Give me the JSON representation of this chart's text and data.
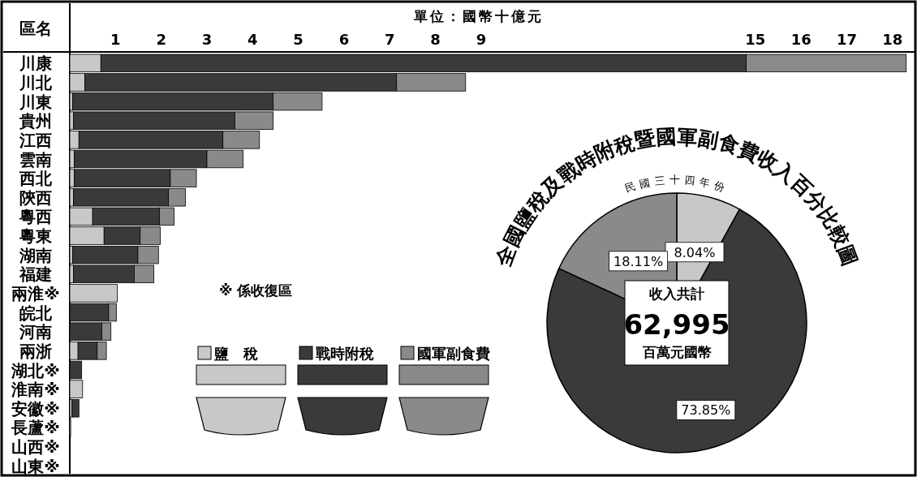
{
  "chart_data": [
    {
      "type": "bar",
      "orientation": "horizontal",
      "stacked": true,
      "xlabel": "單位：國幣十億元",
      "ylabel": "區名",
      "categories": [
        "川康",
        "川北",
        "川東",
        "貴州",
        "江西",
        "雲南",
        "西北",
        "陝西",
        "粵西",
        "粵東",
        "湖南",
        "福建",
        "兩淮※",
        "皖北",
        "河南",
        "兩浙",
        "湖北※",
        "淮南※",
        "安徽※",
        "長蘆※",
        "山西※",
        "山東※"
      ],
      "series": [
        {
          "name": "鹽　稅",
          "color": "#c8c8c8",
          "values": [
            0.68,
            0.33,
            0.06,
            0.08,
            0.2,
            0.1,
            0.1,
            0.08,
            0.5,
            0.75,
            0.06,
            0.08,
            1.04,
            null,
            null,
            0.18,
            null,
            0.28,
            0.05,
            0.02,
            null,
            null
          ]
        },
        {
          "name": "戰時附稅",
          "color": "#3a3a3a",
          "values": [
            14.12,
            6.82,
            4.39,
            3.53,
            3.15,
            2.9,
            2.1,
            2.08,
            1.46,
            0.79,
            1.43,
            1.33,
            null,
            0.85,
            0.7,
            0.42,
            0.26,
            null,
            0.15,
            null,
            null,
            null
          ]
        },
        {
          "name": "國軍副食費",
          "color": "#8a8a8a",
          "values": [
            3.5,
            1.51,
            1.07,
            0.84,
            0.8,
            0.79,
            0.57,
            0.37,
            0.32,
            0.44,
            0.45,
            0.43,
            null,
            0.17,
            0.2,
            0.2,
            null,
            null,
            null,
            null,
            null,
            null
          ]
        }
      ],
      "xlim": [
        0,
        18.5
      ],
      "xticks": [
        1,
        2,
        3,
        4,
        5,
        6,
        7,
        8,
        9,
        15,
        16,
        17,
        18
      ],
      "legend": "bottom",
      "annotations": [
        "※ 係收復區"
      ]
    },
    {
      "type": "pie",
      "title": "全國鹽稅及戰時附稅暨國軍副食費收入百分比較圖",
      "subtitle": "民國三十四年份",
      "categories": [
        null,
        null,
        null
      ],
      "values": [
        8.04,
        73.85,
        18.11
      ],
      "colors": [
        "#c8c8c8",
        "#3a3a3a",
        "#8a8a8a"
      ],
      "value_labels": [
        "8.04%",
        "73.85%",
        "18.11%"
      ],
      "annotations": [
        "收入共計",
        "62,995",
        "百萬元國幣"
      ]
    }
  ]
}
